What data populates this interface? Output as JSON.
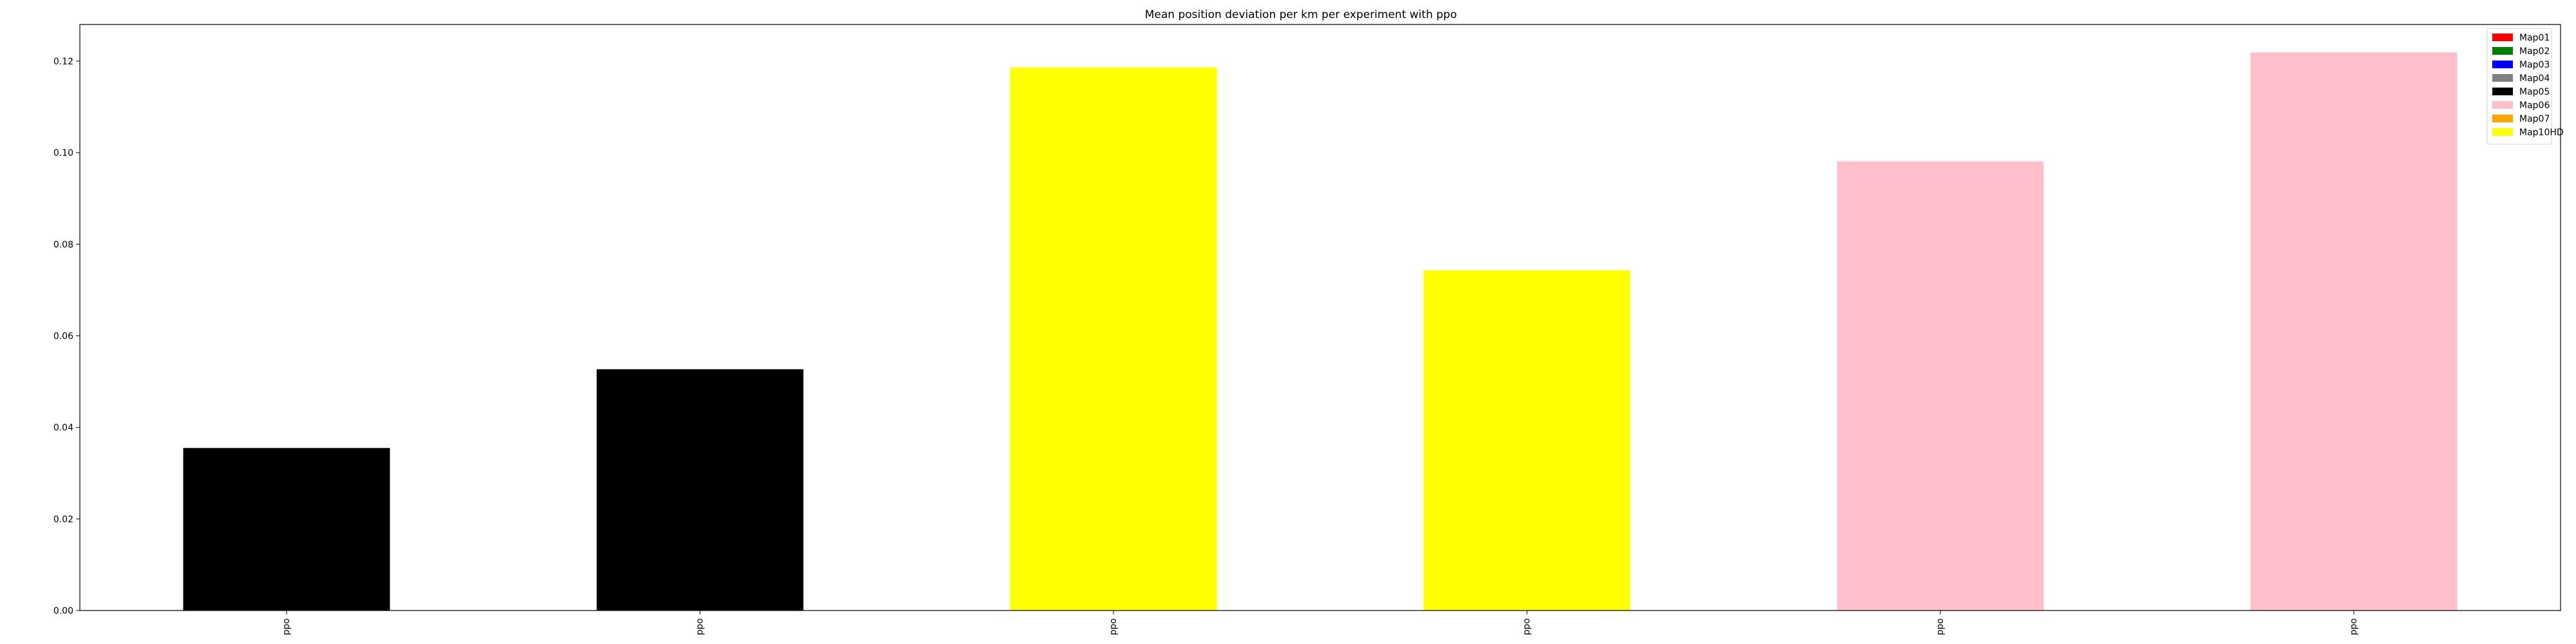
{
  "chart_data": {
    "type": "bar",
    "title": "Mean position deviation per km per experiment with ppo",
    "xlabel": "",
    "ylabel": "",
    "categories": [
      "ppo",
      "ppo",
      "ppo",
      "ppo",
      "ppo",
      "ppo"
    ],
    "values": [
      0.0355,
      0.0527,
      0.1186,
      0.0743,
      0.0981,
      0.1219
    ],
    "bar_maps": [
      "Map05",
      "Map05",
      "Map10HD",
      "Map10HD",
      "Map06",
      "Map06"
    ],
    "ylim": [
      0,
      0.128
    ],
    "yticks": [
      0.0,
      0.02,
      0.04,
      0.06,
      0.08,
      0.1,
      0.12
    ],
    "ytick_labels": [
      "0.00",
      "0.02",
      "0.04",
      "0.06",
      "0.08",
      "0.10",
      "0.12"
    ],
    "grid": false,
    "legend_placement": "top-right",
    "legend": [
      {
        "label": "Map01",
        "color": "#ff0000"
      },
      {
        "label": "Map02",
        "color": "#008000"
      },
      {
        "label": "Map03",
        "color": "#0000ff"
      },
      {
        "label": "Map04",
        "color": "#808080"
      },
      {
        "label": "Map05",
        "color": "#000000"
      },
      {
        "label": "Map06",
        "color": "#ffc0cb"
      },
      {
        "label": "Map07",
        "color": "#ffa500"
      },
      {
        "label": "Map10HD",
        "color": "#ffff00"
      }
    ]
  }
}
